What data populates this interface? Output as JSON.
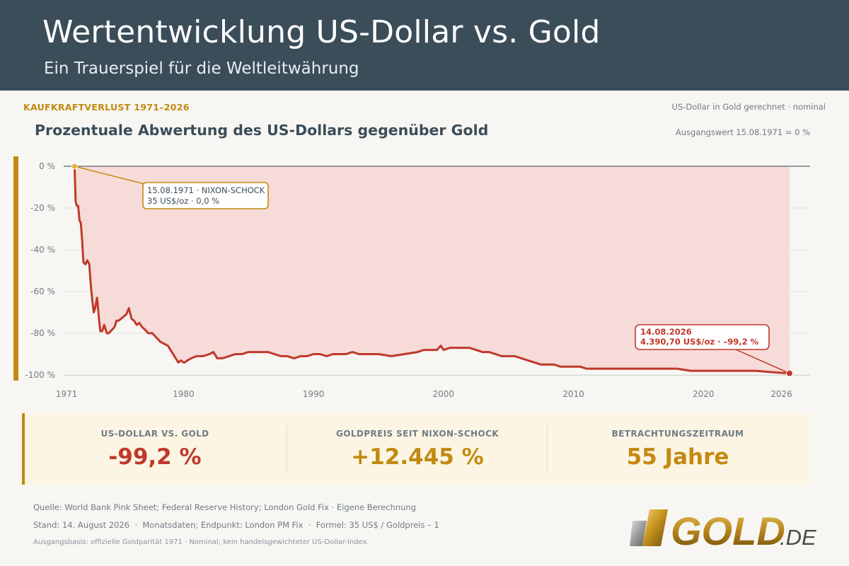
{
  "header": {
    "title": "Wertentwicklung US-Dollar vs. Gold",
    "subtitle": "Ein Trauerspiel für die Weltleitwährung"
  },
  "kicker": "KAUFKRAFTVERLUST 1971–2026",
  "meta_right": "US-Dollar in Gold gerechnet · nominal",
  "meta_base": "Ausgangswert 15.08.1971 = 0 %",
  "chart_title": "Prozentuale Abwertung des US-Dollars gegenüber Gold",
  "chart_data": {
    "type": "area",
    "title": "Prozentuale Abwertung des US-Dollars gegenüber Gold",
    "xlabel": "",
    "ylabel": "",
    "xlim": [
      1971,
      2026.8
    ],
    "ylim": [
      -100,
      0
    ],
    "x_ticks": [
      1971,
      1980,
      1990,
      2000,
      2010,
      2020,
      2026
    ],
    "y_ticks": [
      0,
      -20,
      -40,
      -60,
      -80,
      -100
    ],
    "y_tick_labels": [
      "0 %",
      "-20 %",
      "-40 %",
      "-60 %",
      "-80 %",
      "-100 %"
    ],
    "grid": true,
    "colors": {
      "line": "#c0392b",
      "area": "#f5d9d6",
      "accent": "#c28a10",
      "zero_line": "#6f7c86"
    },
    "series": [
      {
        "x": [
          1971.62,
          1971.7,
          1971.8,
          1971.9,
          1972.0,
          1972.1,
          1972.2,
          1972.3,
          1972.45,
          1972.6,
          1972.75,
          1972.9,
          1973.0,
          1973.1,
          1973.2,
          1973.35,
          1973.5,
          1973.6,
          1973.75,
          1973.9,
          1974.0,
          1974.1,
          1974.25,
          1974.4,
          1974.55,
          1974.7,
          1974.85,
          1975.0,
          1975.2,
          1975.4,
          1975.6,
          1975.8,
          1976.0,
          1976.2,
          1976.4,
          1976.6,
          1976.8,
          1977.0,
          1977.3,
          1977.6,
          1977.9,
          1978.2,
          1978.5,
          1978.8,
          1979.0,
          1979.2,
          1979.4,
          1979.6,
          1979.8,
          1980.0,
          1980.1,
          1980.3,
          1980.6,
          1981.0,
          1981.5,
          1982.0,
          1982.3,
          1982.6,
          1983.0,
          1983.5,
          1984.0,
          1984.5,
          1985.0,
          1985.5,
          1986.0,
          1986.5,
          1987.0,
          1987.5,
          1988.0,
          1988.5,
          1989.0,
          1989.5,
          1990.0,
          1990.5,
          1991.0,
          1991.5,
          1992.0,
          1992.5,
          1993.0,
          1993.5,
          1994.0,
          1995.0,
          1996.0,
          1997.0,
          1998.0,
          1998.5,
          1999.0,
          1999.5,
          1999.8,
          2000.0,
          2000.5,
          2001.0,
          2001.5,
          2002.0,
          2002.5,
          2003.0,
          2003.5,
          2004.0,
          2004.5,
          2005.0,
          2005.5,
          2006.0,
          2006.5,
          2007.0,
          2007.5,
          2008.0,
          2008.5,
          2009.0,
          2009.5,
          2010.0,
          2010.5,
          2011.0,
          2011.5,
          2012.0,
          2012.5,
          2013.0,
          2013.5,
          2014.0,
          2015.0,
          2016.0,
          2017.0,
          2018.0,
          2019.0,
          2020.0,
          2021.0,
          2022.0,
          2023.0,
          2024.0,
          2025.0,
          2026.0,
          2026.62
        ],
        "y": [
          0,
          -17,
          -19,
          -19,
          -26,
          -27,
          -35,
          -46,
          -47,
          -45,
          -47,
          -59,
          -65,
          -70,
          -68,
          -63,
          -73,
          -79,
          -79,
          -76,
          -78,
          -80,
          -80,
          -79,
          -78,
          -77,
          -74,
          -74,
          -73,
          -72,
          -71,
          -68,
          -73,
          -74,
          -76,
          -75,
          -77,
          -78,
          -80,
          -80,
          -82,
          -84,
          -85,
          -86,
          -88,
          -90,
          -92,
          -94,
          -93,
          -94,
          -94,
          -93,
          -92,
          -91,
          -91,
          -90,
          -89,
          -92,
          -92,
          -91,
          -90,
          -90,
          -89,
          -89,
          -89,
          -89,
          -90,
          -91,
          -91,
          -92,
          -91,
          -91,
          -90,
          -90,
          -91,
          -90,
          -90,
          -90,
          -89,
          -90,
          -90,
          -90,
          -91,
          -90,
          -89,
          -88,
          -88,
          -88,
          -86,
          -88,
          -87,
          -87,
          -87,
          -87,
          -88,
          -89,
          -89,
          -90,
          -91,
          -91,
          -91,
          -92,
          -93,
          -94,
          -95,
          -95,
          -95,
          -96,
          -96,
          -96,
          -96,
          -97,
          -97,
          -97,
          -97,
          -97,
          -97,
          -97,
          -97,
          -97,
          -97,
          -97,
          -98,
          -98,
          -98,
          -98,
          -98,
          -98,
          -98.5,
          -99,
          -99.2
        ]
      }
    ],
    "annotations": [
      {
        "x": 1971.62,
        "y": 0,
        "line1": "15.08.1971 · NIXON-SCHOCK",
        "line2": "35 US$/oz · 0,0 %"
      },
      {
        "x": 2026.62,
        "y": -99.2,
        "line1": "14.08.2026",
        "line2": "4.390,70 US$/oz · –99,2 %"
      }
    ]
  },
  "kpis": [
    {
      "label": "US-DOLLAR VS. GOLD",
      "value": "-99,2 %",
      "color": "#c0392b"
    },
    {
      "label": "GOLDPREIS SEIT NIXON-SCHOCK",
      "value": "+12.445 %",
      "color": "#c28a10"
    },
    {
      "label": "BETRACHTUNGSZEITRAUM",
      "value": "55 Jahre",
      "color": "#c28a10"
    }
  ],
  "footer": {
    "source": "Quelle: World Bank Pink Sheet; Federal Reserve History; London Gold Fix · Eigene Berechnung",
    "stand": "Stand: 14. August 2026  ·  Monatsdaten; Endpunkt: London PM Fix  ·  Formel: 35 US$ / Goldpreis – 1",
    "basis": "Ausgangsbasis: offizielle Goldparität 1971 · Nominal; kein handelsgewichteter US-Dollar-Index."
  },
  "logo": {
    "word": "GOLD",
    "suffix": ".DE"
  }
}
